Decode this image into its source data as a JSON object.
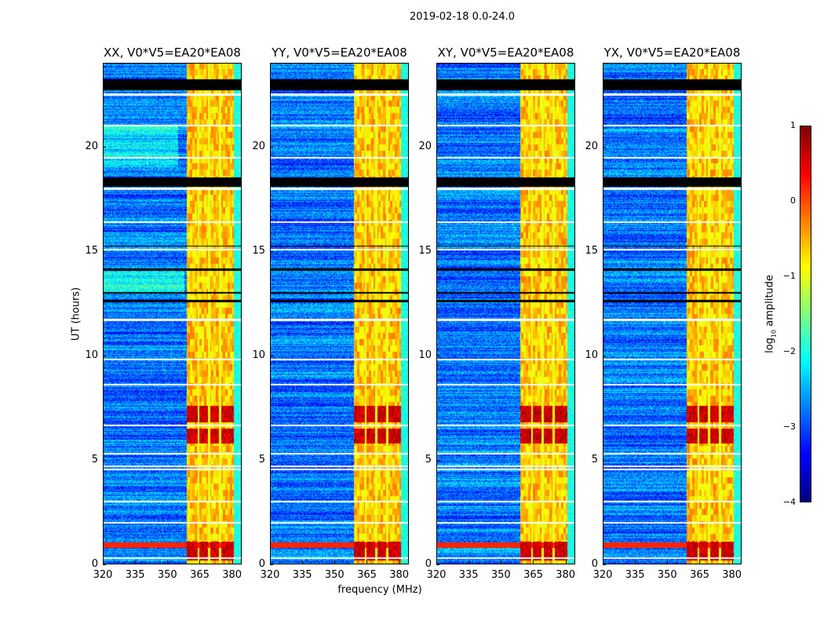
{
  "suptitle": "2019-02-18 0.0-24.0",
  "chart_data": {
    "type": "heatmap",
    "xlabel": "frequency (MHz)",
    "ylabel": "UT (hours)",
    "xlim": [
      320,
      384.5
    ],
    "ylim": [
      0,
      24
    ],
    "xticks": [
      "320",
      "335",
      "350",
      "365",
      "380"
    ],
    "xtick_values": [
      320,
      335,
      350,
      365,
      380
    ],
    "yticks": [
      "0",
      "5",
      "10",
      "15",
      "20"
    ],
    "ytick_values": [
      0,
      5,
      10,
      15,
      20
    ],
    "panels": [
      {
        "title": "XX, V0*V5=EA20*EA08",
        "pol": "XX"
      },
      {
        "title": "YY, V0*V5=EA20*EA08",
        "pol": "YY"
      },
      {
        "title": "XY, V0*V5=EA20*EA08",
        "pol": "XY"
      },
      {
        "title": "YX, V0*V5=EA20*EA08",
        "pol": "YX"
      }
    ],
    "colorbar": {
      "label_main": "log",
      "label_sub": "10",
      "label_rest": " amplitude",
      "colormap": "jet",
      "range": [
        -4,
        1
      ],
      "ticks": [
        "1",
        "0",
        "−1",
        "−2",
        "−3",
        "−4"
      ],
      "tick_values": [
        1,
        0,
        -1,
        -2,
        -3,
        -4
      ]
    },
    "features": {
      "bright_band_mhz": [
        359,
        381
      ],
      "bright_band_level": -0.6,
      "background_level": -2.8,
      "flagged_hours": [
        0.3,
        2.0,
        3.0,
        4.55,
        4.7,
        5.3,
        6.65,
        8.6,
        9.8,
        11.7,
        15.05,
        16.36,
        17.97,
        19.47,
        20.98,
        22.48
      ],
      "blank_hours": [
        [
          18.05,
          18.5
        ],
        [
          22.7,
          23.2
        ],
        [
          14.05,
          14.15
        ],
        [
          12.55,
          12.65
        ],
        [
          12.95,
          13.05
        ],
        [
          15.2,
          15.25
        ]
      ],
      "strong_hours": [
        [
          0.2,
          1.1
        ],
        [
          5.8,
          6.5
        ],
        [
          6.8,
          7.6
        ]
      ],
      "full_band_strong_hours": [
        0.8,
        1.05
      ]
    }
  }
}
